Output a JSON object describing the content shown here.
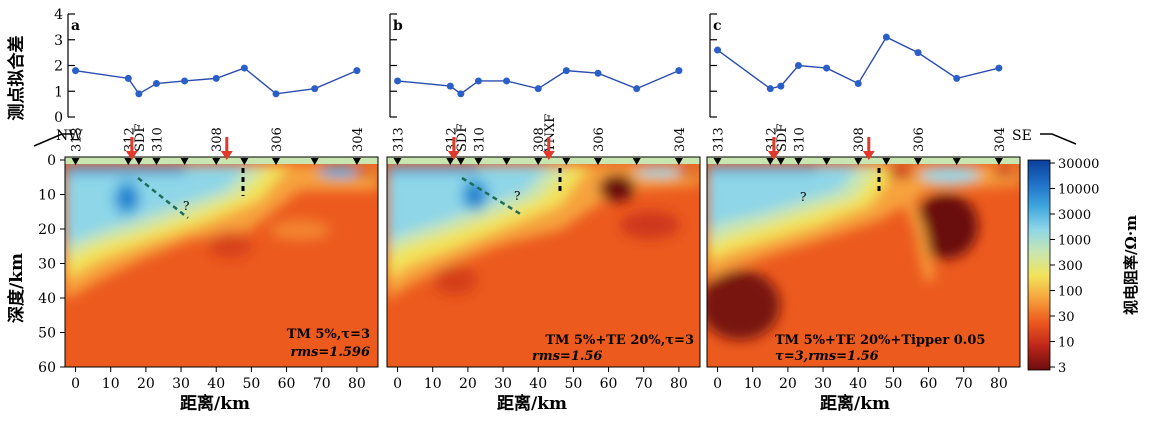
{
  "y_label_top": "测点拟合差",
  "y_label_bottom": "深度/km",
  "x_label": "距离/km",
  "direction_left": "NW",
  "direction_right": "SE",
  "colorbar": {
    "title": "视电阻率/Ω·m",
    "ticks": [
      "30000",
      "10000",
      "3000",
      "1000",
      "300",
      "100",
      "30",
      "10",
      "3"
    ],
    "colors": [
      "#0a3f9a",
      "#1f6fc6",
      "#3ea6de",
      "#8ed6e8",
      "#c9e6b0",
      "#f2e35a",
      "#f6a23c",
      "#ec5a1e",
      "#c2281a",
      "#6b0c0c"
    ]
  },
  "fit_ticks": [
    "0",
    "1",
    "2",
    "3",
    "4"
  ],
  "depth_ticks": [
    "0",
    "10",
    "20",
    "30",
    "40",
    "50",
    "60"
  ],
  "distance_ticks": [
    "0",
    "10",
    "20",
    "30",
    "40",
    "50",
    "60",
    "70",
    "80"
  ],
  "stations": [
    "313",
    "312",
    "310",
    "308",
    "306",
    "304"
  ],
  "fault_sdf": "SDF",
  "fault_ynxf": "YNXF",
  "question_mark": "?",
  "chart_data": [
    {
      "type": "line",
      "panel": "a",
      "x": [
        0,
        15,
        18,
        23,
        31,
        40,
        48,
        57,
        68,
        80
      ],
      "values": [
        1.8,
        1.5,
        0.9,
        1.3,
        1.4,
        1.5,
        1.9,
        0.9,
        1.1,
        1.8
      ],
      "ylim": [
        0,
        4
      ],
      "xlim": [
        -3,
        86
      ],
      "ylabel": "测点拟合差",
      "legend_line1": "TM 5%,τ=3",
      "legend_line2": "rms=1.596"
    },
    {
      "type": "line",
      "panel": "b",
      "x": [
        0,
        15,
        18,
        23,
        31,
        40,
        48,
        57,
        68,
        80
      ],
      "values": [
        1.4,
        1.2,
        0.9,
        1.4,
        1.4,
        1.1,
        1.8,
        1.7,
        1.1,
        1.8
      ],
      "ylim": [
        0,
        4
      ],
      "xlim": [
        -3,
        86
      ],
      "legend_line1": "TM 5%+TE 20%,τ=3",
      "legend_line2": "rms=1.56"
    },
    {
      "type": "line",
      "panel": "c",
      "x": [
        0,
        15,
        18,
        23,
        31,
        40,
        48,
        57,
        68,
        80
      ],
      "values": [
        2.6,
        1.1,
        1.2,
        2.0,
        1.9,
        1.3,
        3.1,
        2.5,
        1.5,
        1.9
      ],
      "ylim": [
        0,
        4
      ],
      "xlim": [
        -3,
        86
      ],
      "legend_line1": "TM 5%+TE 20%+Tipper 0.05",
      "legend_line2": "τ=3,rms=1.56"
    }
  ]
}
